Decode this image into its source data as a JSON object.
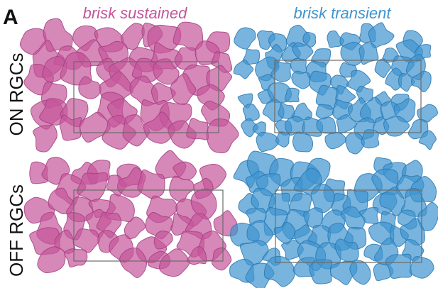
{
  "panel_letter": "A",
  "columns": [
    {
      "key": "brisk_sustained",
      "title": "brisk sustained",
      "color": "#c4559a",
      "edge": "#a33f80"
    },
    {
      "key": "brisk_transient",
      "title": "brisk transient",
      "color": "#3f94cf",
      "edge": "#2a78b1"
    }
  ],
  "rows": [
    {
      "key": "on",
      "label": "ON RGCs"
    },
    {
      "key": "off",
      "label": "OFF RGCs"
    }
  ]
}
